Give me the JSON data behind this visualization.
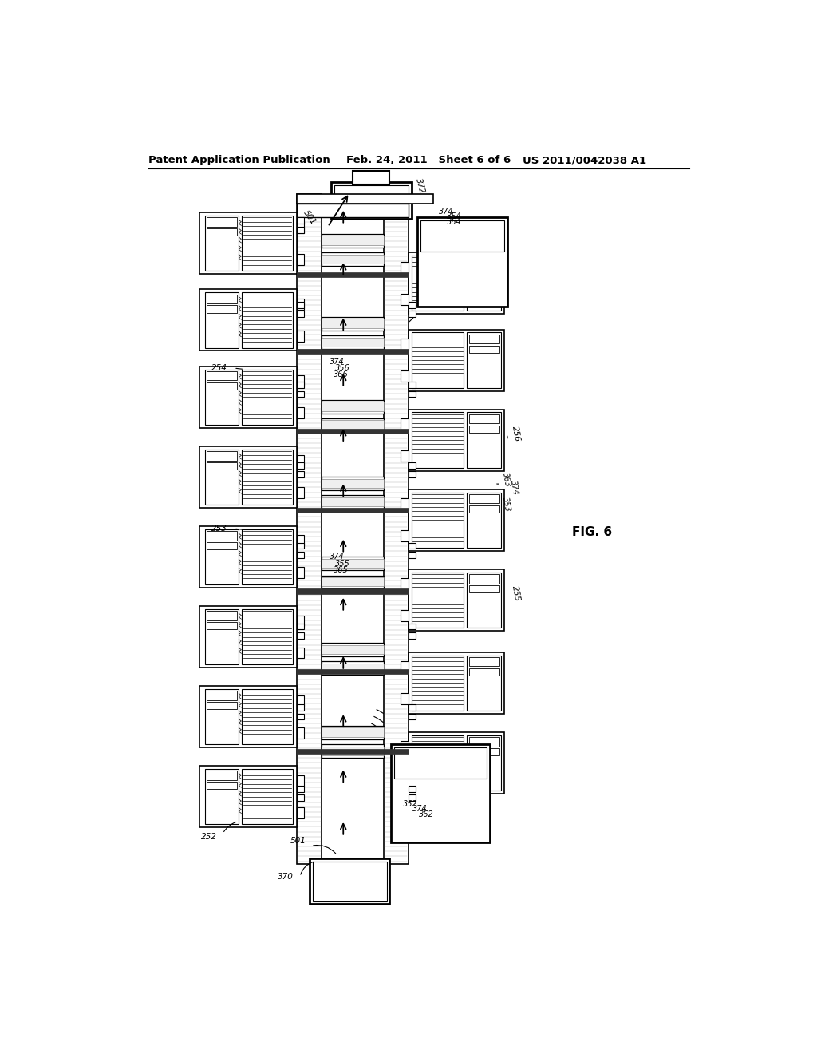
{
  "page_bg": "#ffffff",
  "header_left": "Patent Application Publication",
  "header_mid": "Feb. 24, 2011   Sheet 6 of 6",
  "header_right": "US 2011/0042038 A1",
  "fig_label": "FIG. 6",
  "header_font_size": 9.5,
  "fig_label_font_size": 11
}
